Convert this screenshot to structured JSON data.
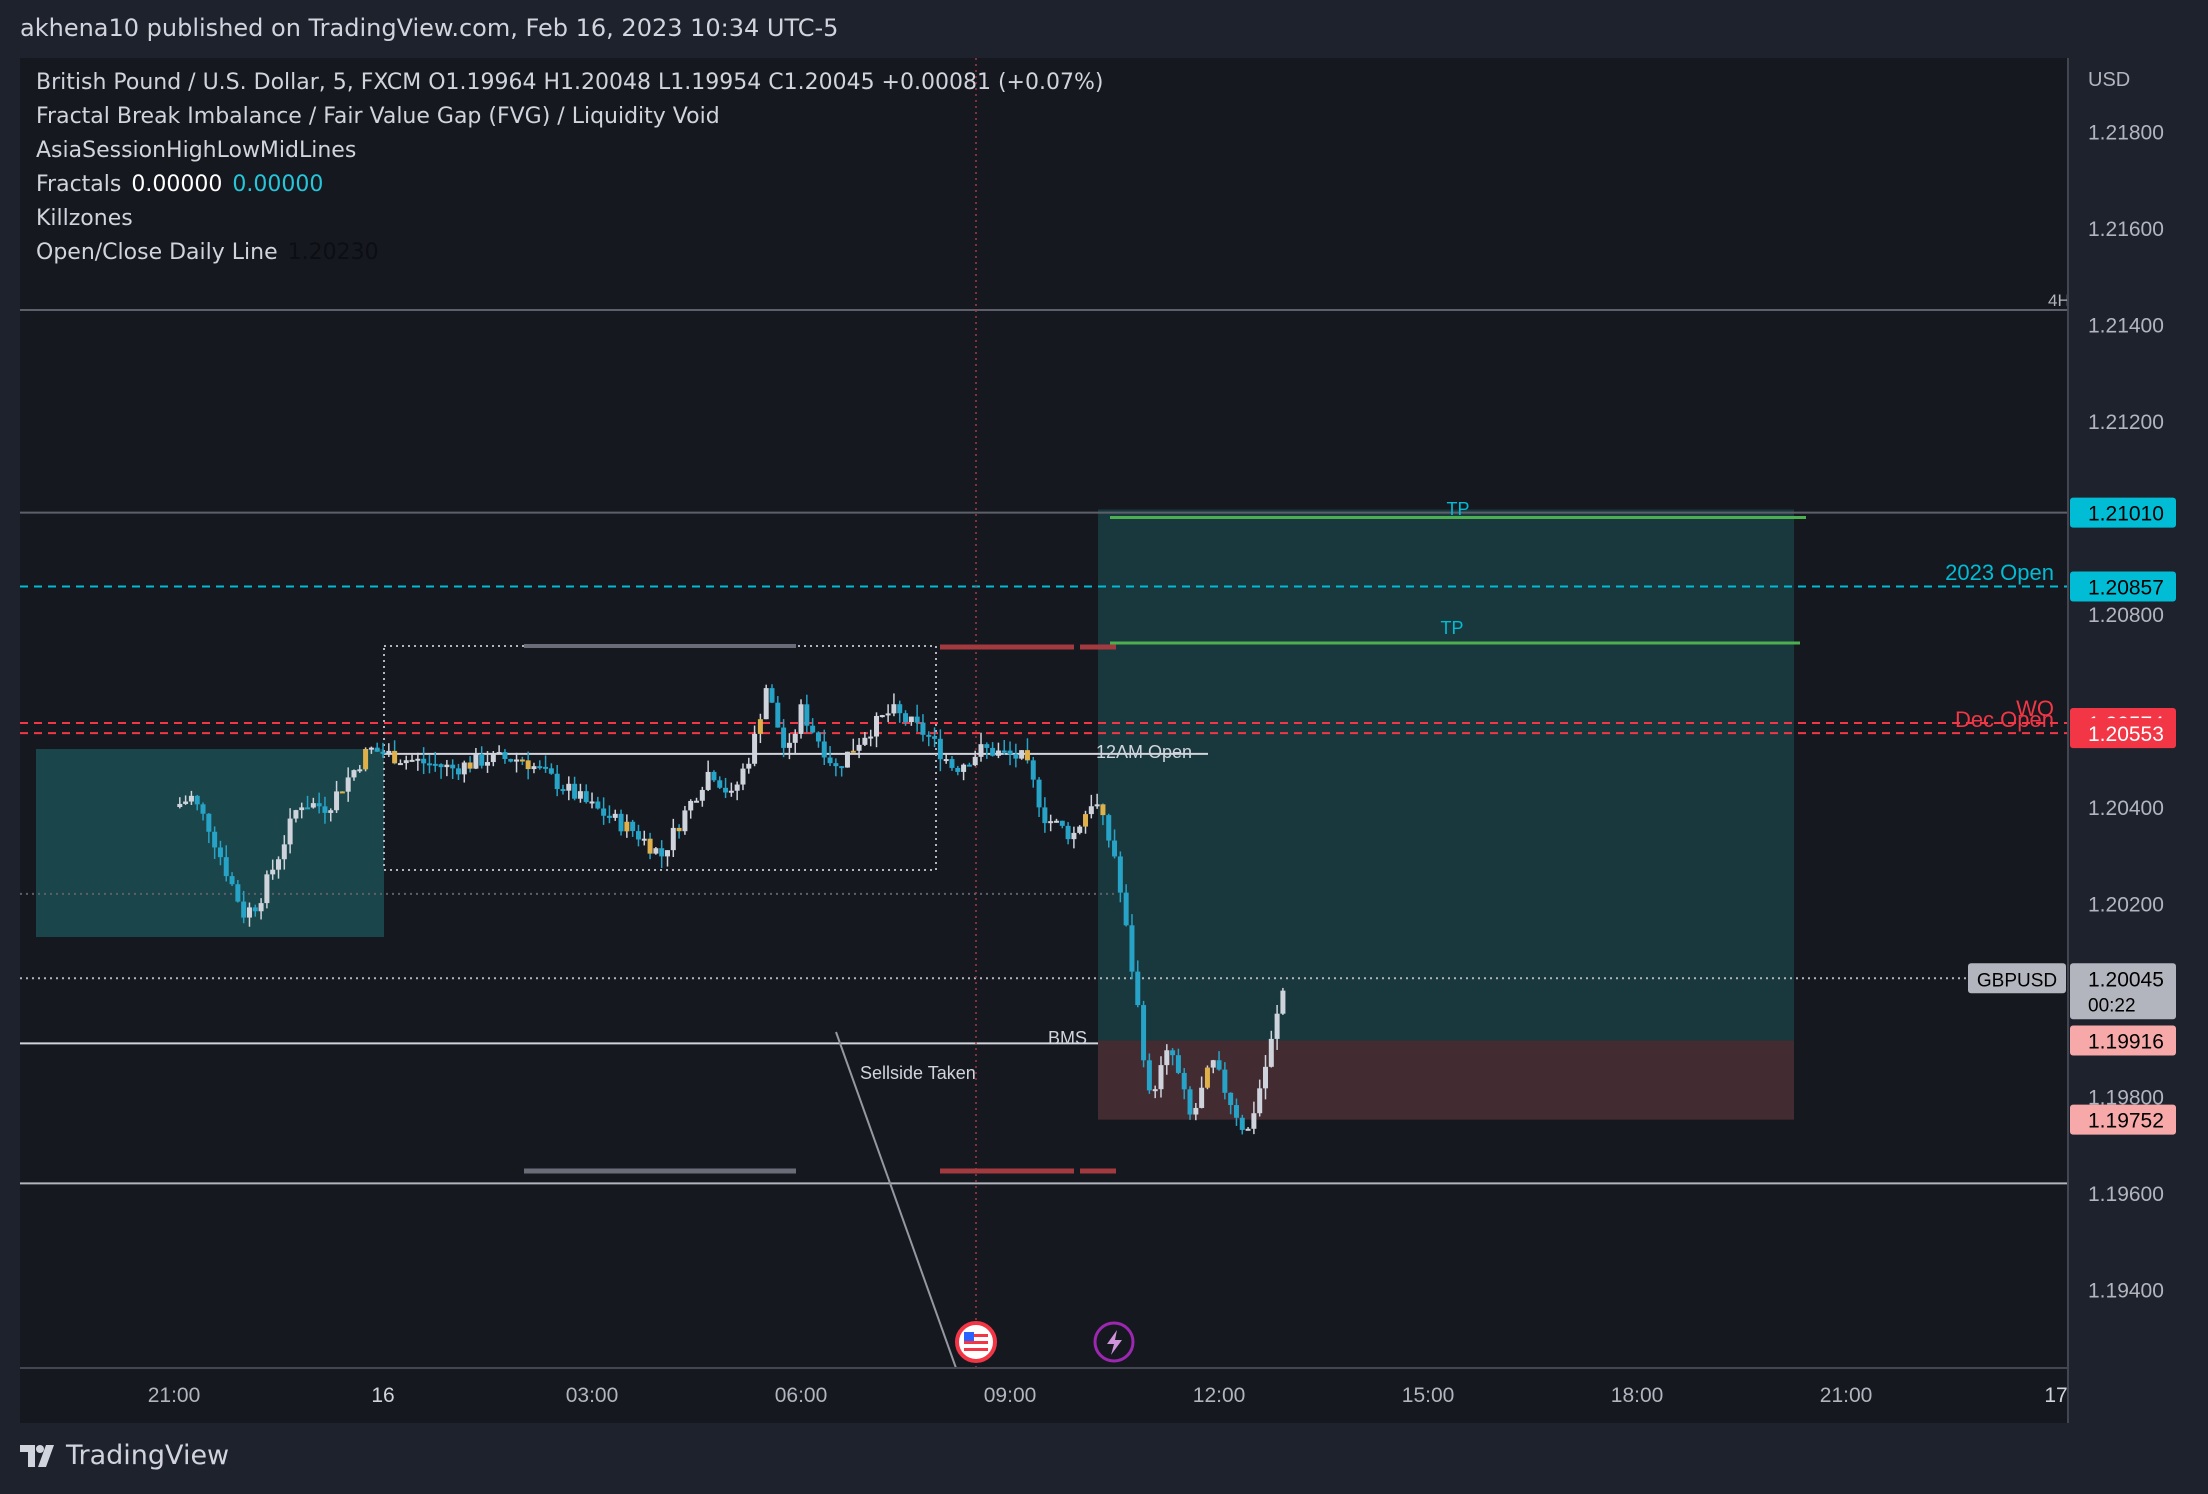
{
  "header": {
    "published": "akhena10 published on TradingView.com, Feb 16, 2023 10:34 UTC-5"
  },
  "legend": {
    "symbol_line": "British Pound / U.S. Dollar, 5, FXCM  O1.19964  H1.20048  L1.19954  C1.20045  +0.00081 (+0.07%)",
    "fvg": "Fractal Break Imbalance / Fair Value Gap (FVG) / Liquidity Void",
    "asia": "AsiaSessionHighLowMidLines",
    "fractals_label": "Fractals",
    "fractals_v1": "0.00000",
    "fractals_v2": "0.00000",
    "killzones": "Killzones",
    "ocd_label": "Open/Close Daily Line",
    "ocd_value": "1.20230"
  },
  "chart_data": {
    "type": "candlestick",
    "symbol": "GBPUSD",
    "timeframe": "5",
    "currency_label": "USD",
    "ohlc_last": {
      "open": 1.19964,
      "high": 1.20048,
      "low": 1.19954,
      "close": 1.20045,
      "change": "+0.00081 (+0.07%)"
    },
    "x_ticks": [
      "21:00",
      "16",
      "03:00",
      "06:00",
      "09:00",
      "12:00",
      "15:00",
      "18:00",
      "21:00",
      "17"
    ],
    "y_ticks": [
      "1.21800",
      "1.21600",
      "1.21400",
      "1.21200",
      "1.20800",
      "1.20400",
      "1.20200",
      "1.19800",
      "1.19600",
      "1.19400"
    ],
    "ylim": [
      1.1925,
      1.2194
    ],
    "price_badges": [
      {
        "label": "1.21010",
        "value": 1.2101,
        "bg": "#00bcd4",
        "fg": "#000000"
      },
      {
        "label": "1.20857",
        "value": 1.20857,
        "bg": "#00bcd4",
        "fg": "#000000"
      },
      {
        "label": "1.20574",
        "value": 1.20574,
        "bg": "#f23645",
        "fg": "#ffffff"
      },
      {
        "label": "1.20553",
        "value": 1.20553,
        "bg": "#f23645",
        "fg": "#ffffff"
      },
      {
        "label": "1.19916",
        "value": 1.19916,
        "bg": "#f7a9a9",
        "fg": "#000000"
      },
      {
        "label": "1.19752",
        "value": 1.19752,
        "bg": "#f7a9a9",
        "fg": "#000000"
      }
    ],
    "last_price": {
      "symbol": "GBPUSD",
      "label": "1.20045",
      "value": 1.20045,
      "countdown": "00:22"
    },
    "annotations": [
      "TP",
      "TP",
      "2023 Open",
      "WO",
      "Dec Open",
      "12AM Open",
      "BMS",
      "Sellside Taken",
      "4H"
    ],
    "levels": {
      "tp1": 1.21,
      "tp2": 1.2074,
      "open2023": 1.20857,
      "wo": 1.20574,
      "dec_open": 1.20553,
      "midnight_open": 1.2051,
      "entry": 1.19916,
      "stop": 1.19752,
      "sellside": 1.1991,
      "h_line_upper": 1.2143,
      "h_line_mid": 1.2101,
      "h_line_low": 1.1962
    }
  },
  "colors": {
    "background": "#1e222d",
    "chart_bg": "#16181f",
    "bull": "#cfd3dc",
    "bear": "#26a3c6",
    "fvg": "#e0b04a",
    "target_zone": "#1b4a4f",
    "stop_zone": "#4a2f35",
    "tp_line": "#4caf50",
    "red_level": "#f23645",
    "cyan_level": "#00bcd4"
  },
  "brand": {
    "name": "TradingView"
  }
}
